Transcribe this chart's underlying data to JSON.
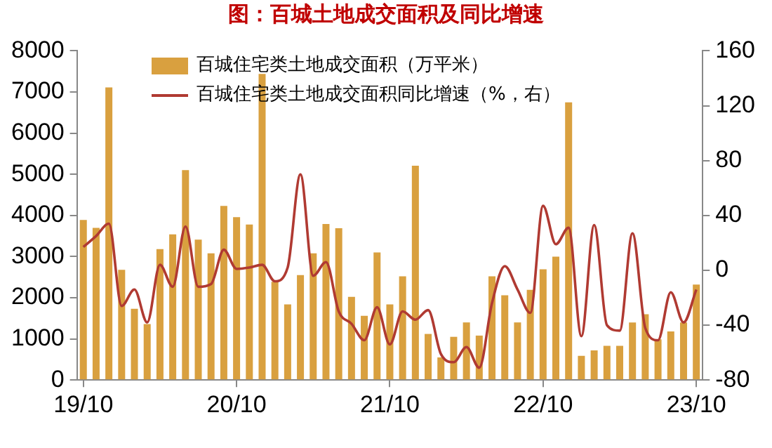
{
  "chart_data": {
    "type": "bar",
    "title": "图：百城土地成交面积及同比增速",
    "categories": [
      "19/10",
      null,
      null,
      null,
      null,
      null,
      null,
      null,
      null,
      null,
      null,
      null,
      "20/10",
      null,
      null,
      null,
      null,
      null,
      null,
      null,
      null,
      null,
      null,
      null,
      "21/10",
      null,
      null,
      null,
      null,
      null,
      null,
      null,
      null,
      null,
      null,
      null,
      "22/10",
      null,
      null,
      null,
      null,
      null,
      null,
      null,
      null,
      null,
      null,
      null,
      "23/10"
    ],
    "series": [
      {
        "name": "百城住宅类土地成交面积（万平米）",
        "color": "#d9a03f",
        "values": [
          3890,
          3700,
          7110,
          2680,
          1730,
          1360,
          3180,
          3540,
          5100,
          3410,
          3080,
          4230,
          3960,
          3780,
          7440,
          2390,
          1840,
          2550,
          3080,
          3790,
          3690,
          2020,
          1560,
          3100,
          1840,
          2520,
          5210,
          1120,
          550,
          1050,
          1400,
          1080,
          2520,
          2060,
          1400,
          2190,
          2690,
          3000,
          6750,
          590,
          720,
          830,
          830,
          1400,
          1600,
          990,
          1180,
          1400,
          2320
        ]
      },
      {
        "name": "百城住宅类土地成交面积同比增速（%，右）",
        "color": "#b03a32",
        "type": "line",
        "axis": "y2",
        "values": [
          17,
          25,
          34,
          -26,
          -14,
          -38,
          4,
          -12,
          32,
          -12,
          -10,
          15,
          1,
          2,
          4,
          -8,
          2,
          70,
          -4,
          6,
          -30,
          -39,
          -51,
          -27,
          -54,
          -30,
          -36,
          -29,
          -61,
          -67,
          -56,
          -71,
          -24,
          3,
          -14,
          -31,
          47,
          19,
          31,
          -48,
          33,
          -40,
          -44,
          27,
          -42,
          -51,
          -16,
          -38,
          -14
        ]
      }
    ],
    "ylim": [
      0,
      8000
    ],
    "yticks": [
      0,
      1000,
      2000,
      3000,
      4000,
      5000,
      6000,
      7000,
      8000
    ],
    "y2lim": [
      -80,
      160
    ],
    "y2ticks": [
      -80,
      -40,
      0,
      40,
      80,
      120,
      160
    ],
    "grid": false,
    "legend": "top",
    "marker": "none",
    "line_style": "solid"
  }
}
